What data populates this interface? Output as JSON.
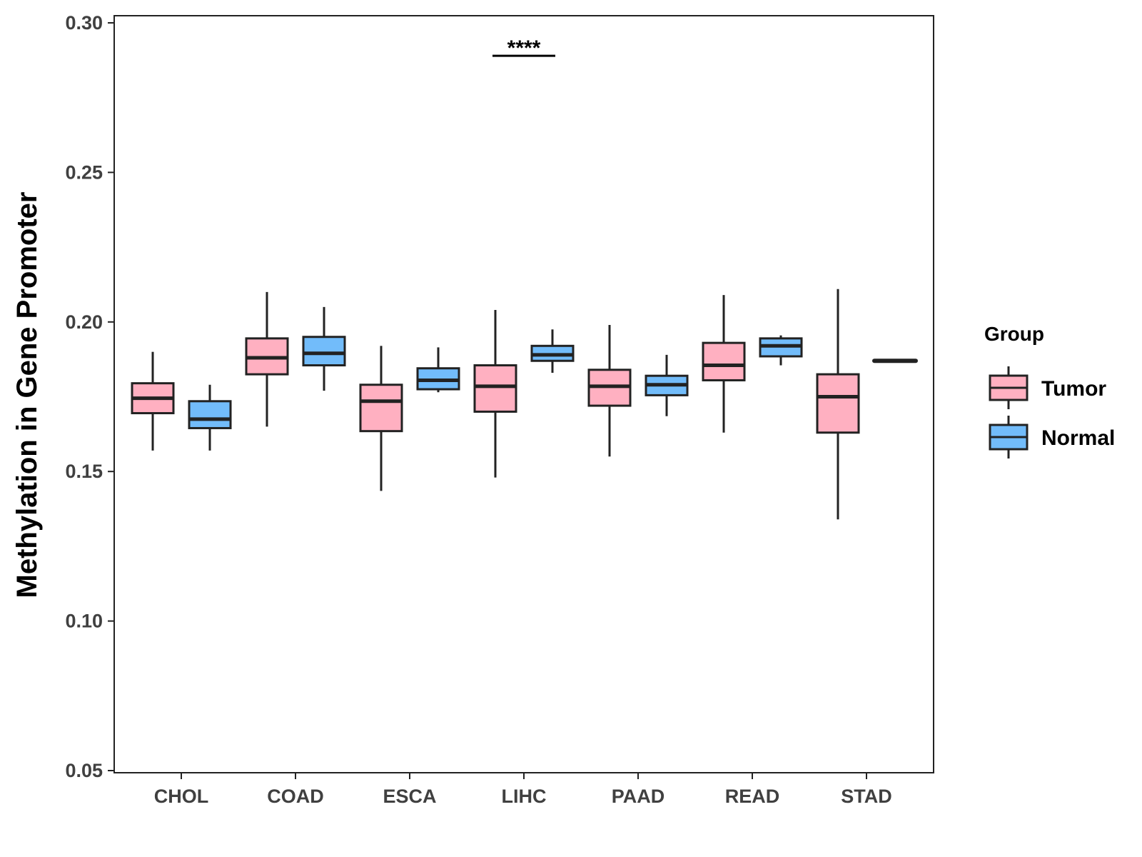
{
  "chart_data": {
    "type": "boxplot",
    "title": "",
    "xlabel": "",
    "ylabel": "Methylation in Gene Promoter",
    "ylim": [
      0.05,
      0.3
    ],
    "yticks": [
      0.05,
      0.1,
      0.15,
      0.2,
      0.25,
      0.3
    ],
    "ytick_labels": [
      "0.05",
      "0.10",
      "0.15",
      "0.20",
      "0.25",
      "0.30"
    ],
    "categories": [
      "CHOL",
      "COAD",
      "ESCA",
      "LIHC",
      "PAAD",
      "READ",
      "STAD"
    ],
    "legend": {
      "title": "Group",
      "position": "right",
      "entries": [
        {
          "name": "Tumor",
          "color": "#FFB0C1"
        },
        {
          "name": "Normal",
          "color": "#72BCFA"
        }
      ]
    },
    "series": [
      {
        "name": "Tumor",
        "color": "#FFB0C1",
        "boxes": [
          {
            "category": "CHOL",
            "min": 0.157,
            "q1": 0.1695,
            "median": 0.1745,
            "q3": 0.1795,
            "max": 0.19
          },
          {
            "category": "COAD",
            "min": 0.165,
            "q1": 0.1825,
            "median": 0.188,
            "q3": 0.1945,
            "max": 0.21
          },
          {
            "category": "ESCA",
            "min": 0.1435,
            "q1": 0.1635,
            "median": 0.1735,
            "q3": 0.179,
            "max": 0.192
          },
          {
            "category": "LIHC",
            "min": 0.148,
            "q1": 0.17,
            "median": 0.1785,
            "q3": 0.1855,
            "max": 0.204
          },
          {
            "category": "PAAD",
            "min": 0.155,
            "q1": 0.172,
            "median": 0.1785,
            "q3": 0.184,
            "max": 0.199
          },
          {
            "category": "READ",
            "min": 0.163,
            "q1": 0.1805,
            "median": 0.1855,
            "q3": 0.193,
            "max": 0.209
          },
          {
            "category": "STAD",
            "min": 0.134,
            "q1": 0.163,
            "median": 0.175,
            "q3": 0.1825,
            "max": 0.211
          }
        ]
      },
      {
        "name": "Normal",
        "color": "#72BCFA",
        "boxes": [
          {
            "category": "CHOL",
            "min": 0.157,
            "q1": 0.1645,
            "median": 0.1675,
            "q3": 0.1735,
            "max": 0.179
          },
          {
            "category": "COAD",
            "min": 0.177,
            "q1": 0.1855,
            "median": 0.1895,
            "q3": 0.195,
            "max": 0.205
          },
          {
            "category": "ESCA",
            "min": 0.1765,
            "q1": 0.1775,
            "median": 0.1805,
            "q3": 0.1845,
            "max": 0.1915
          },
          {
            "category": "LIHC",
            "min": 0.183,
            "q1": 0.187,
            "median": 0.189,
            "q3": 0.192,
            "max": 0.1975
          },
          {
            "category": "PAAD",
            "min": 0.1685,
            "q1": 0.1755,
            "median": 0.179,
            "q3": 0.182,
            "max": 0.189
          },
          {
            "category": "READ",
            "min": 0.1855,
            "q1": 0.1885,
            "median": 0.192,
            "q3": 0.1945,
            "max": 0.1955
          },
          {
            "category": "STAD",
            "min": 0.187,
            "q1": 0.187,
            "median": 0.187,
            "q3": 0.187,
            "max": 0.187
          }
        ]
      }
    ],
    "annotations": [
      {
        "category": "LIHC",
        "text": "****",
        "y": 0.289
      }
    ]
  }
}
